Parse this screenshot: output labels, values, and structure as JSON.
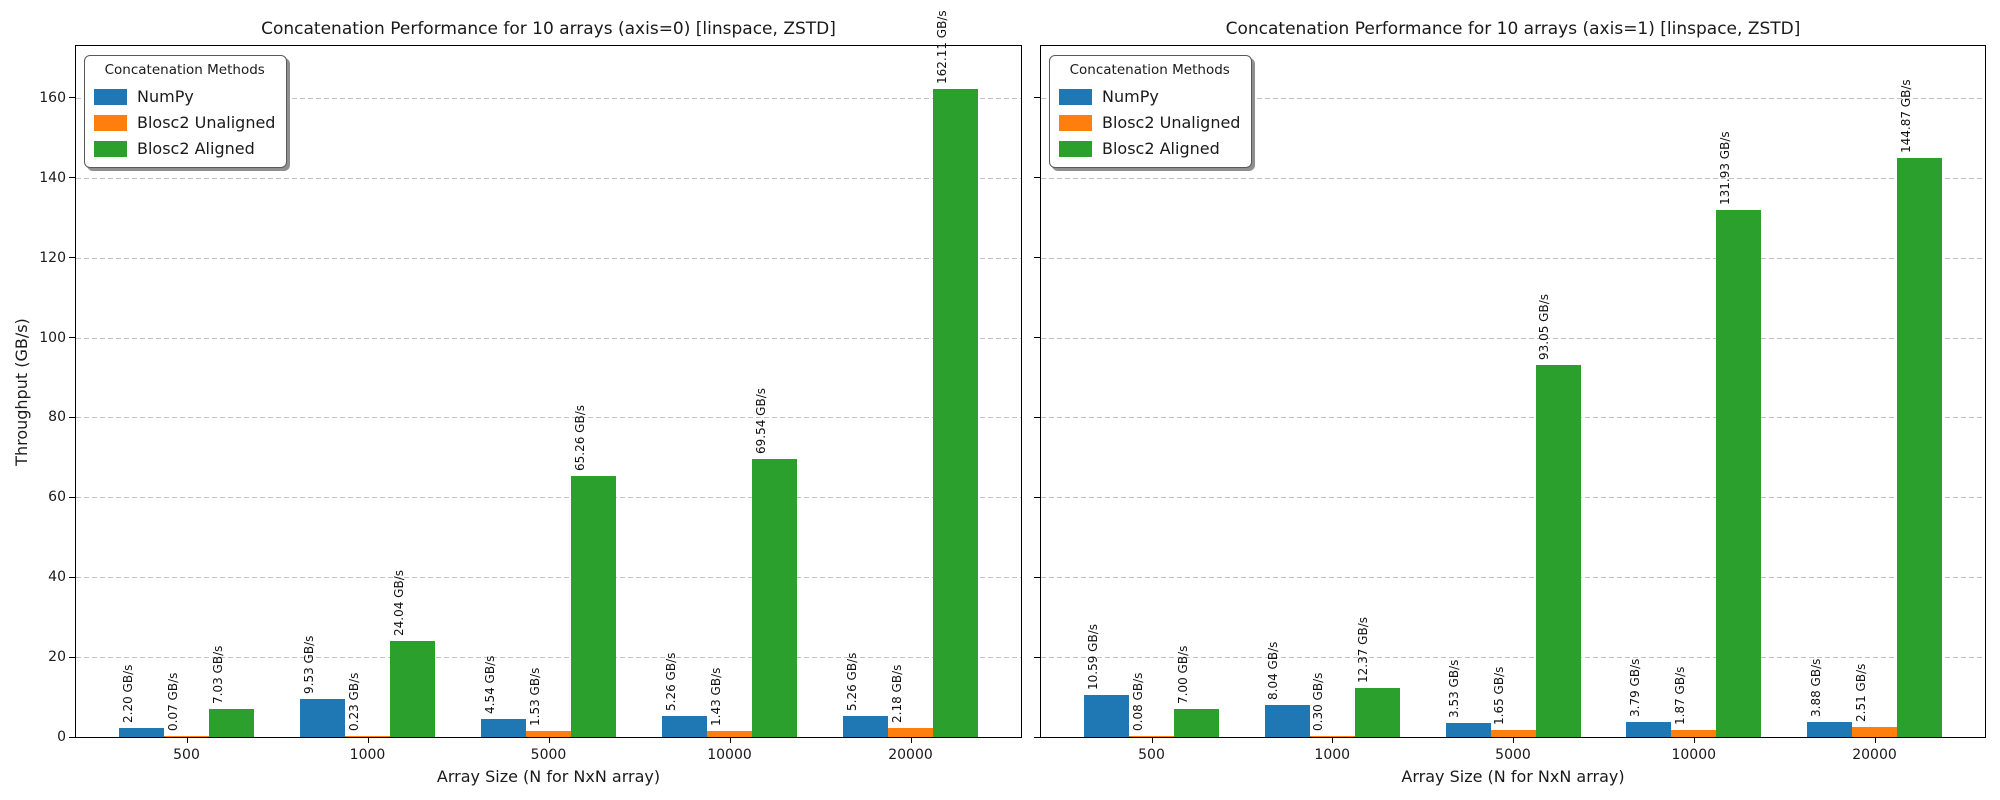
{
  "figure": {
    "background": "#ffffff",
    "text_color": "#1a1a1a",
    "spine_color": "#000000",
    "grid_color": "#c2c2c2"
  },
  "shared": {
    "xlabel": "Array Size (N for NxN array)",
    "ylabel": "Throughput (GB/s)",
    "legend_title": "Concatenation Methods",
    "unit_suffix": "GB/s"
  },
  "chart_data": [
    {
      "type": "bar",
      "title": "Concatenation Performance for 10 arrays (axis=0) [linspace, ZSTD]",
      "xlabel": "Array Size (N for NxN array)",
      "ylabel": "Throughput (GB/s)",
      "categories": [
        "500",
        "1000",
        "5000",
        "10000",
        "20000"
      ],
      "series": [
        {
          "name": "NumPy",
          "color": "#1f77b4",
          "values": [
            2.2,
            9.53,
            4.54,
            5.26,
            5.26
          ],
          "labels": [
            "2.20 GB/s",
            "9.53 GB/s",
            "4.54 GB/s",
            "5.26 GB/s",
            "5.26 GB/s"
          ]
        },
        {
          "name": "Blosc2 Unaligned",
          "color": "#ff7f0e",
          "values": [
            0.07,
            0.23,
            1.53,
            1.43,
            2.18
          ],
          "labels": [
            "0.07 GB/s",
            "0.23 GB/s",
            "1.53 GB/s",
            "1.43 GB/s",
            "2.18 GB/s"
          ]
        },
        {
          "name": "Blosc2 Aligned",
          "color": "#2ca02c",
          "values": [
            7.03,
            24.04,
            65.26,
            69.54,
            162.11
          ],
          "labels": [
            "7.03 GB/s",
            "24.04 GB/s",
            "65.26 GB/s",
            "69.54 GB/s",
            "162.11 GB/s"
          ]
        }
      ],
      "ylim": [
        0,
        173
      ],
      "yticks": [
        0,
        20,
        40,
        60,
        80,
        100,
        120,
        140,
        160
      ],
      "ytick_labels_visible": true,
      "grid": {
        "axis": "y",
        "style": "dashed",
        "on": true
      },
      "legend": {
        "title": "Concatenation Methods",
        "position": "upper left",
        "entries": [
          "NumPy",
          "Blosc2 Unaligned",
          "Blosc2 Aligned"
        ]
      }
    },
    {
      "type": "bar",
      "title": "Concatenation Performance for 10 arrays (axis=1) [linspace, ZSTD]",
      "xlabel": "Array Size (N for NxN array)",
      "ylabel": "",
      "categories": [
        "500",
        "1000",
        "5000",
        "10000",
        "20000"
      ],
      "series": [
        {
          "name": "NumPy",
          "color": "#1f77b4",
          "values": [
            10.59,
            8.04,
            3.53,
            3.79,
            3.88
          ],
          "labels": [
            "10.59 GB/s",
            "8.04 GB/s",
            "3.53 GB/s",
            "3.79 GB/s",
            "3.88 GB/s"
          ]
        },
        {
          "name": "Blosc2 Unaligned",
          "color": "#ff7f0e",
          "values": [
            0.08,
            0.3,
            1.65,
            1.87,
            2.51
          ],
          "labels": [
            "0.08 GB/s",
            "0.30 GB/s",
            "1.65 GB/s",
            "1.87 GB/s",
            "2.51 GB/s"
          ]
        },
        {
          "name": "Blosc2 Aligned",
          "color": "#2ca02c",
          "values": [
            7.0,
            12.37,
            93.05,
            131.93,
            144.87
          ],
          "labels": [
            "7.00 GB/s",
            "12.37 GB/s",
            "93.05 GB/s",
            "131.93 GB/s",
            "144.87 GB/s"
          ]
        }
      ],
      "ylim": [
        0,
        173
      ],
      "yticks": [
        0,
        20,
        40,
        60,
        80,
        100,
        120,
        140,
        160
      ],
      "ytick_labels_visible": false,
      "grid": {
        "axis": "y",
        "style": "dashed",
        "on": true
      },
      "legend": {
        "title": "Concatenation Methods",
        "position": "upper left",
        "entries": [
          "NumPy",
          "Blosc2 Unaligned",
          "Blosc2 Aligned"
        ]
      }
    }
  ]
}
